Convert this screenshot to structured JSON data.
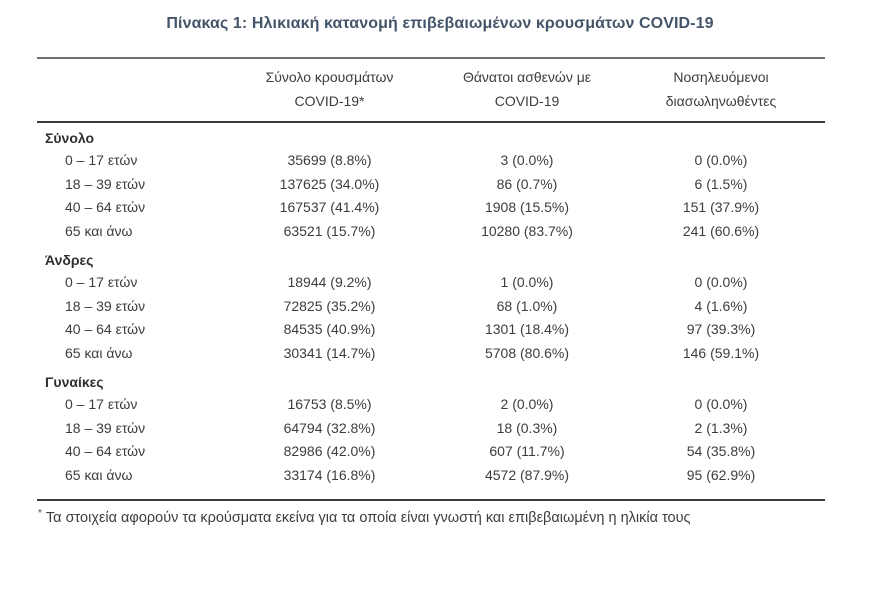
{
  "page": {
    "title": "Πίνακας 1: Ηλικιακή κατανομή επιβεβαιωμένων κρουσμάτων COVID-19"
  },
  "table": {
    "columns": [
      {
        "line1": "Σύνολο κρουσμάτων",
        "line2": "COVID-19*"
      },
      {
        "line1": "Θάνατοι ασθενών με",
        "line2": "COVID-19"
      },
      {
        "line1": "Νοσηλευόμενοι",
        "line2": "διασωληνωθέντες"
      }
    ],
    "sections": [
      {
        "label": "Σύνολο",
        "rows": [
          {
            "age": "0 – 17 ετών",
            "cases": "35699 (8.8%)",
            "deaths": "3 (0.0%)",
            "intubated": "0 (0.0%)"
          },
          {
            "age": "18 – 39 ετών",
            "cases": "137625 (34.0%)",
            "deaths": "86 (0.7%)",
            "intubated": "6 (1.5%)"
          },
          {
            "age": "40 – 64 ετών",
            "cases": "167537 (41.4%)",
            "deaths": "1908 (15.5%)",
            "intubated": "151 (37.9%)"
          },
          {
            "age": "65 και άνω",
            "cases": "63521 (15.7%)",
            "deaths": "10280 (83.7%)",
            "intubated": "241 (60.6%)"
          }
        ]
      },
      {
        "label": "Άνδρες",
        "rows": [
          {
            "age": "0 – 17 ετών",
            "cases": "18944 (9.2%)",
            "deaths": "1 (0.0%)",
            "intubated": "0 (0.0%)"
          },
          {
            "age": "18 – 39 ετών",
            "cases": "72825 (35.2%)",
            "deaths": "68 (1.0%)",
            "intubated": "4 (1.6%)"
          },
          {
            "age": "40 – 64 ετών",
            "cases": "84535 (40.9%)",
            "deaths": "1301 (18.4%)",
            "intubated": "97 (39.3%)"
          },
          {
            "age": "65 και άνω",
            "cases": "30341 (14.7%)",
            "deaths": "5708 (80.6%)",
            "intubated": "146 (59.1%)"
          }
        ]
      },
      {
        "label": "Γυναίκες",
        "rows": [
          {
            "age": "0 – 17 ετών",
            "cases": "16753 (8.5%)",
            "deaths": "2 (0.0%)",
            "intubated": "0 (0.0%)"
          },
          {
            "age": "18 – 39 ετών",
            "cases": "64794 (32.8%)",
            "deaths": "18 (0.3%)",
            "intubated": "2 (1.3%)"
          },
          {
            "age": "40 – 64 ετών",
            "cases": "82986 (42.0%)",
            "deaths": "607 (11.7%)",
            "intubated": "54 (35.8%)"
          },
          {
            "age": "65 και άνω",
            "cases": "33174 (16.8%)",
            "deaths": "4572 (87.9%)",
            "intubated": "95 (62.9%)"
          }
        ]
      }
    ],
    "footnote": {
      "marker": "*",
      "text": "Τα στοιχεία αφορούν τα κρούσματα εκείνα για τα οποία είναι γνωστή και επιβεβαιωμένη η ηλικία τους"
    }
  },
  "colors": {
    "title": "#44546a",
    "text": "#3d3d3d",
    "rule_light": "#6e6e6e",
    "rule_dark": "#3c3c3c"
  }
}
